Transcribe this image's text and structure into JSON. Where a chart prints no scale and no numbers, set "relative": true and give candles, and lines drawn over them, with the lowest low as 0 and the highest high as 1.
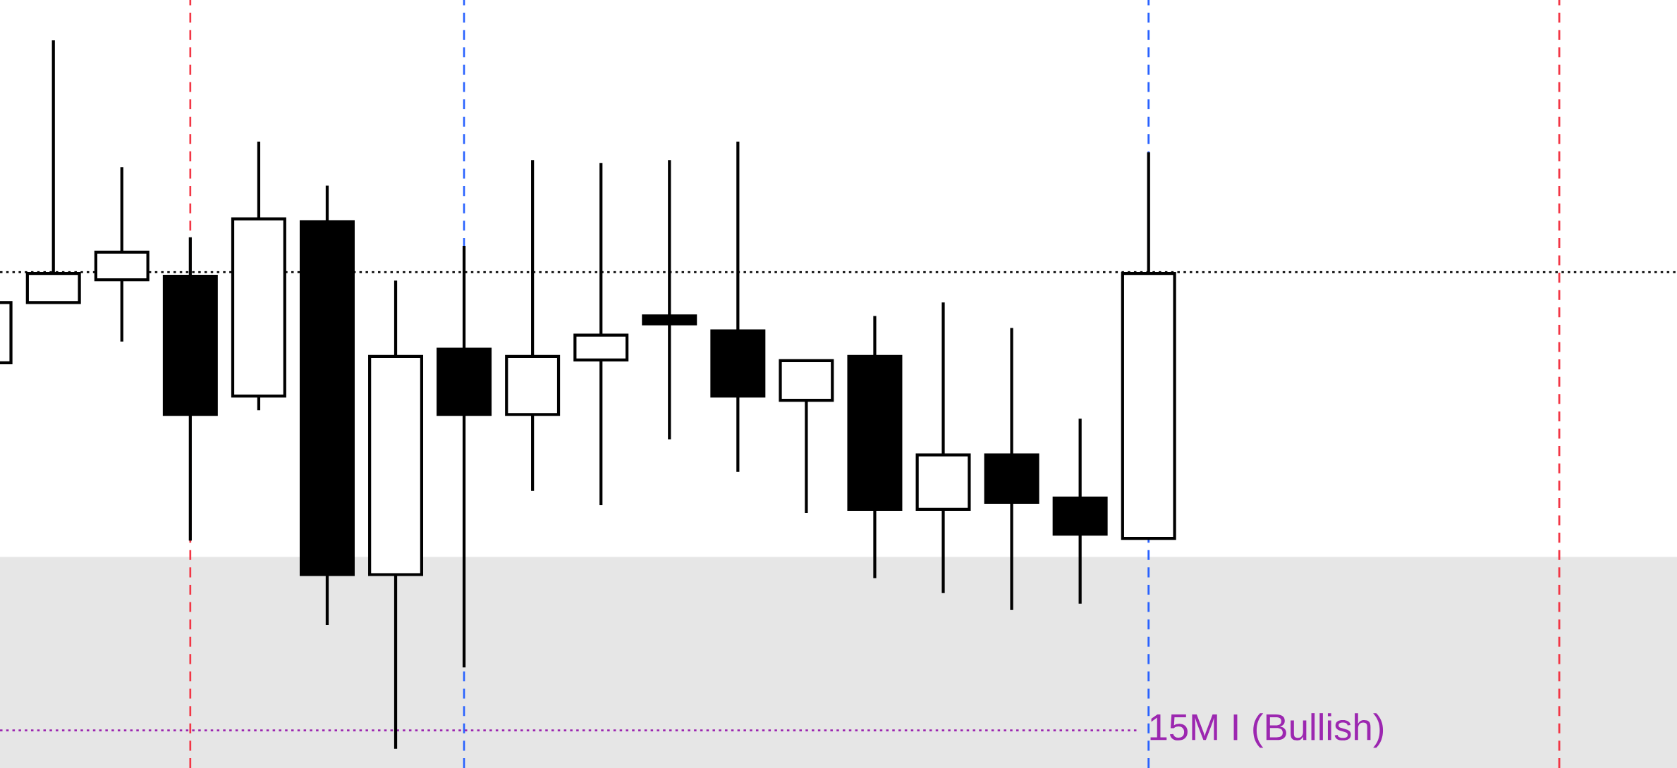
{
  "chart_data": {
    "type": "candlestick",
    "relative": true,
    "categories": [
      null,
      null,
      null,
      null,
      null,
      null,
      null,
      null,
      null,
      null,
      null,
      null,
      null,
      null,
      null,
      null,
      null,
      null,
      null,
      null,
      null,
      null,
      null,
      null,
      null
    ],
    "ohlc": [
      [
        0.545,
        0.63,
        0.545,
        0.63
      ],
      [
        0.63,
        1.0,
        0.63,
        0.671
      ],
      [
        0.662,
        0.821,
        0.575,
        0.701
      ],
      [
        0.667,
        0.722,
        0.294,
        0.472
      ],
      [
        0.498,
        0.857,
        0.478,
        0.748
      ],
      [
        0.744,
        0.795,
        0.175,
        0.246
      ],
      [
        0.246,
        0.661,
        0,
        0.554
      ],
      [
        0.564,
        0.71,
        0.115,
        0.472
      ],
      [
        0.472,
        0.831,
        0.364,
        0.554
      ],
      [
        0.549,
        0.827,
        0.344,
        0.584
      ],
      [
        0.611,
        0.831,
        0.437,
        0.6
      ],
      [
        0.59,
        0.857,
        0.391,
        0.498
      ],
      [
        0.492,
        0.548,
        0.333,
        0.548
      ],
      [
        0.554,
        0.611,
        0.241,
        0.338
      ],
      [
        0.338,
        0.63,
        0.22,
        0.415
      ],
      [
        0.415,
        0.594,
        0.196,
        0.348
      ],
      [
        0.354,
        0.466,
        0.205,
        0.303
      ],
      [
        0.297,
        0.842,
        0.297,
        0.671
      ],
      null,
      null,
      null,
      null,
      null,
      null,
      null
    ],
    "colors": [
      "#ffffff",
      "#ffffff",
      "#ffffff",
      "#000000",
      "#ffffff",
      "#000000",
      "#ffffff",
      "#000000",
      "#ffffff",
      "#ffffff",
      "#000000",
      "#000000",
      "#ffffff",
      "#000000",
      "#ffffff",
      "#000000",
      "#000000",
      "#ffffff",
      null,
      null,
      null,
      null,
      null,
      null,
      null
    ],
    "bands": [
      {
        "axis": "y",
        "from": -0.03,
        "to": 0.271,
        "color": "#e6e6e6"
      }
    ],
    "ref_lines": [
      {
        "axis": "y",
        "value": 0.673,
        "color": "#000000",
        "line_style": "dotted"
      },
      {
        "axis": "y",
        "value": 0.026,
        "color": "#9c27b0",
        "line_style": "dotted",
        "label": "15M I (Bullish)"
      }
    ],
    "grid": "x"
  }
}
